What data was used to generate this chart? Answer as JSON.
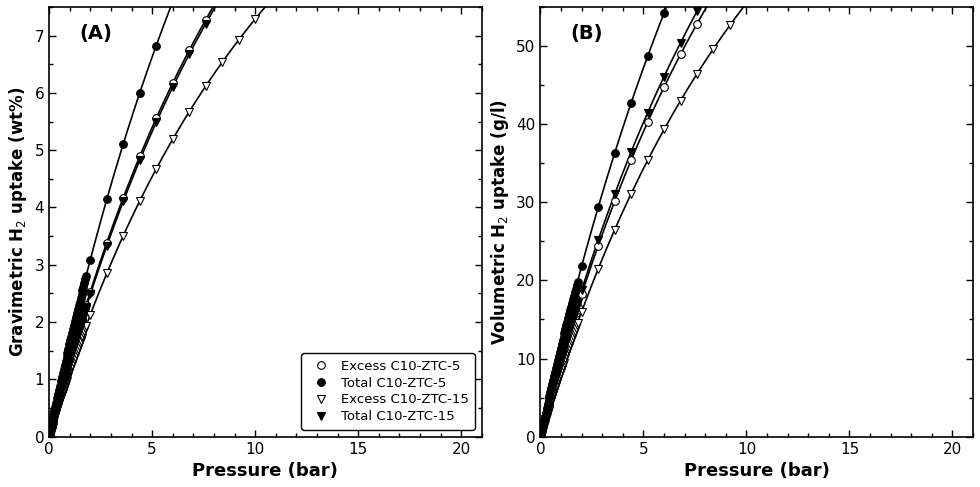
{
  "panel_A": {
    "label": "(A)",
    "ylabel": "Gravimetric H$_2$ uptake (wt%)",
    "xlabel": "Pressure (bar)",
    "xlim": [
      0,
      21
    ],
    "ylim": [
      0,
      7.5
    ],
    "yticks": [
      0,
      1,
      2,
      3,
      4,
      5,
      6,
      7
    ],
    "xticks": [
      0,
      5,
      10,
      15,
      20
    ],
    "series": [
      {
        "name": "Excess C10-ZTC-5",
        "marker": "o",
        "filled": false,
        "markersize": 5.5,
        "linewidth": 1.2,
        "n_max": 22.0,
        "b": 0.065
      },
      {
        "name": "Total C10-ZTC-5",
        "marker": "o",
        "filled": true,
        "markersize": 5.5,
        "linewidth": 1.2,
        "n_max": 28.0,
        "b": 0.062
      },
      {
        "name": "Excess C10-ZTC-15",
        "marker": "v",
        "filled": false,
        "markersize": 5.5,
        "linewidth": 1.2,
        "n_max": 18.5,
        "b": 0.065
      },
      {
        "name": "Total C10-ZTC-15",
        "marker": "v",
        "filled": true,
        "markersize": 5.5,
        "linewidth": 1.2,
        "n_max": 22.5,
        "b": 0.062
      }
    ],
    "legend_loc": "lower right"
  },
  "panel_B": {
    "label": "(B)",
    "ylabel": "Volumetric H$_2$ uptake (g/l)",
    "xlabel": "Pressure (bar)",
    "xlim": [
      0,
      21
    ],
    "ylim": [
      0,
      55
    ],
    "yticks": [
      0,
      10,
      20,
      30,
      40,
      50
    ],
    "xticks": [
      0,
      5,
      10,
      15,
      20
    ],
    "series": [
      {
        "name": "Excess C10-ZTC-5",
        "marker": "o",
        "filled": false,
        "markersize": 5.5,
        "linewidth": 1.2,
        "n_max": 165.0,
        "b": 0.062
      },
      {
        "name": "Total C10-ZTC-5",
        "marker": "o",
        "filled": true,
        "markersize": 5.5,
        "linewidth": 1.2,
        "n_max": 210.0,
        "b": 0.058
      },
      {
        "name": "Excess C10-ZTC-15",
        "marker": "v",
        "filled": false,
        "markersize": 5.5,
        "linewidth": 1.2,
        "n_max": 145.0,
        "b": 0.062
      },
      {
        "name": "Total C10-ZTC-15",
        "marker": "v",
        "filled": true,
        "markersize": 5.5,
        "linewidth": 1.2,
        "n_max": 170.0,
        "b": 0.062
      }
    ]
  },
  "background_color": "#ffffff"
}
